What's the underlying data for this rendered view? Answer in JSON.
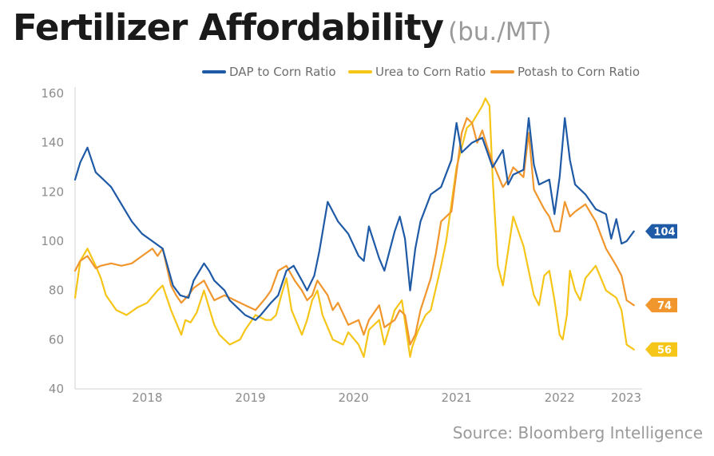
{
  "title": "Fertilizer Affordability",
  "unit": "(bu./MT)",
  "source": "Source: Bloomberg Intelligence",
  "chart_data": {
    "type": "line",
    "title": "Fertilizer Affordability",
    "subtitle": "(bu./MT)",
    "ylim": [
      40,
      160
    ],
    "yticks": [
      40,
      60,
      80,
      100,
      120,
      140,
      160
    ],
    "xlim": [
      2017.75,
      2023.25
    ],
    "xticks": [
      "2018",
      "2019",
      "2020",
      "2021",
      "2022",
      "2023"
    ],
    "grid": false,
    "legend_position": "top-right",
    "series": [
      {
        "name": "DAP to Corn Ratio",
        "color": "#1f5aa6",
        "end_label": "104",
        "x": [
          2017.75,
          2017.8,
          2017.87,
          2017.95,
          2018.0,
          2018.1,
          2018.2,
          2018.3,
          2018.4,
          2018.5,
          2018.6,
          2018.7,
          2018.77,
          2018.85,
          2018.9,
          2019.0,
          2019.05,
          2019.1,
          2019.2,
          2019.25,
          2019.35,
          2019.4,
          2019.5,
          2019.55,
          2019.65,
          2019.72,
          2019.8,
          2019.87,
          2019.95,
          2020.0,
          2020.07,
          2020.12,
          2020.2,
          2020.3,
          2020.4,
          2020.5,
          2020.55,
          2020.6,
          2020.7,
          2020.75,
          2020.85,
          2020.9,
          2020.95,
          2021.0,
          2021.05,
          2021.1,
          2021.2,
          2021.3,
          2021.4,
          2021.45,
          2021.5,
          2021.6,
          2021.7,
          2021.75,
          2021.8,
          2021.9,
          2021.95,
          2022.0,
          2022.1,
          2022.15,
          2022.2,
          2022.25,
          2022.35,
          2022.4,
          2022.45,
          2022.5,
          2022.55,
          2022.6,
          2022.7,
          2022.8,
          2022.9,
          2022.95,
          2023.0,
          2023.05,
          2023.1,
          2023.17
        ],
        "y": [
          125,
          132,
          138,
          128,
          126,
          122,
          115,
          108,
          103,
          100,
          97,
          82,
          78,
          77,
          84,
          91,
          88,
          84,
          80,
          76,
          72,
          70,
          68,
          70,
          75,
          78,
          88,
          90,
          84,
          80,
          86,
          96,
          116,
          108,
          103,
          94,
          92,
          106,
          93,
          88,
          104,
          110,
          101,
          80,
          97,
          108,
          119,
          122,
          133,
          148,
          136,
          140,
          142,
          136,
          130,
          137,
          123,
          127,
          129,
          150,
          131,
          123,
          125,
          111,
          126,
          150,
          133,
          123,
          119,
          113,
          111,
          101,
          109,
          99,
          100,
          104
        ]
      },
      {
        "name": "Urea to Corn Ratio",
        "color": "#f5c518",
        "end_label": "56",
        "x": [
          2017.75,
          2017.8,
          2017.87,
          2017.95,
          2018.0,
          2018.05,
          2018.15,
          2018.25,
          2018.35,
          2018.45,
          2018.55,
          2018.6,
          2018.68,
          2018.72,
          2018.78,
          2018.82,
          2018.87,
          2018.93,
          2019.0,
          2019.05,
          2019.1,
          2019.15,
          2019.25,
          2019.35,
          2019.4,
          2019.5,
          2019.55,
          2019.6,
          2019.65,
          2019.7,
          2019.75,
          2019.8,
          2019.85,
          2019.9,
          2019.95,
          2020.0,
          2020.05,
          2020.1,
          2020.15,
          2020.25,
          2020.35,
          2020.4,
          2020.5,
          2020.55,
          2020.6,
          2020.7,
          2020.75,
          2020.85,
          2020.92,
          2021.0,
          2021.02,
          2021.08,
          2021.15,
          2021.2,
          2021.3,
          2021.35,
          2021.45,
          2021.55,
          2021.6,
          2021.7,
          2021.73,
          2021.77,
          2021.8,
          2021.85,
          2021.9,
          2022.0,
          2022.1,
          2022.2,
          2022.25,
          2022.3,
          2022.35,
          2022.4,
          2022.45,
          2022.48,
          2022.52,
          2022.55,
          2022.6,
          2022.65,
          2022.7,
          2022.8,
          2022.85,
          2022.9,
          2023.0,
          2023.05,
          2023.1,
          2023.17
        ],
        "y": [
          77,
          92,
          97,
          90,
          85,
          78,
          72,
          70,
          73,
          75,
          80,
          82,
          72,
          68,
          62,
          68,
          67,
          71,
          80,
          73,
          66,
          62,
          58,
          60,
          64,
          70,
          69,
          68,
          68,
          70,
          78,
          85,
          72,
          67,
          62,
          68,
          76,
          80,
          70,
          60,
          58,
          63,
          58,
          53,
          64,
          68,
          58,
          72,
          76,
          53,
          57,
          64,
          70,
          72,
          90,
          100,
          130,
          146,
          148,
          155,
          158,
          155,
          126,
          90,
          82,
          110,
          98,
          78,
          74,
          86,
          88,
          76,
          62,
          60,
          70,
          88,
          80,
          76,
          85,
          90,
          85,
          80,
          77,
          72,
          58,
          56
        ]
      },
      {
        "name": "Potash to Corn Ratio",
        "color": "#f0962d",
        "end_label": "74",
        "x": [
          2017.75,
          2017.8,
          2017.87,
          2017.95,
          2018.0,
          2018.1,
          2018.2,
          2018.3,
          2018.4,
          2018.5,
          2018.55,
          2018.6,
          2018.68,
          2018.73,
          2018.78,
          2018.85,
          2018.9,
          2019.0,
          2019.05,
          2019.1,
          2019.2,
          2019.3,
          2019.4,
          2019.5,
          2019.6,
          2019.65,
          2019.72,
          2019.8,
          2019.88,
          2019.95,
          2020.0,
          2020.05,
          2020.1,
          2020.2,
          2020.25,
          2020.3,
          2020.4,
          2020.5,
          2020.55,
          2020.6,
          2020.7,
          2020.75,
          2020.85,
          2020.9,
          2020.95,
          2021.0,
          2021.05,
          2021.1,
          2021.2,
          2021.25,
          2021.3,
          2021.4,
          2021.45,
          2021.5,
          2021.55,
          2021.6,
          2021.65,
          2021.7,
          2021.75,
          2021.8,
          2021.9,
          2021.95,
          2022.0,
          2022.1,
          2022.15,
          2022.2,
          2022.3,
          2022.35,
          2022.4,
          2022.45,
          2022.5,
          2022.55,
          2022.6,
          2022.7,
          2022.8,
          2022.9,
          2023.0,
          2023.05,
          2023.1,
          2023.17
        ],
        "y": [
          88,
          92,
          94,
          89,
          90,
          91,
          90,
          91,
          94,
          97,
          94,
          97,
          82,
          78,
          75,
          78,
          81,
          84,
          80,
          76,
          78,
          76,
          74,
          72,
          77,
          80,
          88,
          90,
          84,
          80,
          76,
          78,
          84,
          78,
          72,
          75,
          66,
          68,
          62,
          68,
          74,
          65,
          68,
          72,
          70,
          58,
          62,
          72,
          85,
          95,
          108,
          112,
          128,
          144,
          150,
          148,
          140,
          145,
          138,
          132,
          122,
          125,
          130,
          126,
          144,
          121,
          113,
          110,
          104,
          104,
          116,
          110,
          112,
          115,
          108,
          97,
          90,
          86,
          76,
          74
        ]
      }
    ]
  }
}
